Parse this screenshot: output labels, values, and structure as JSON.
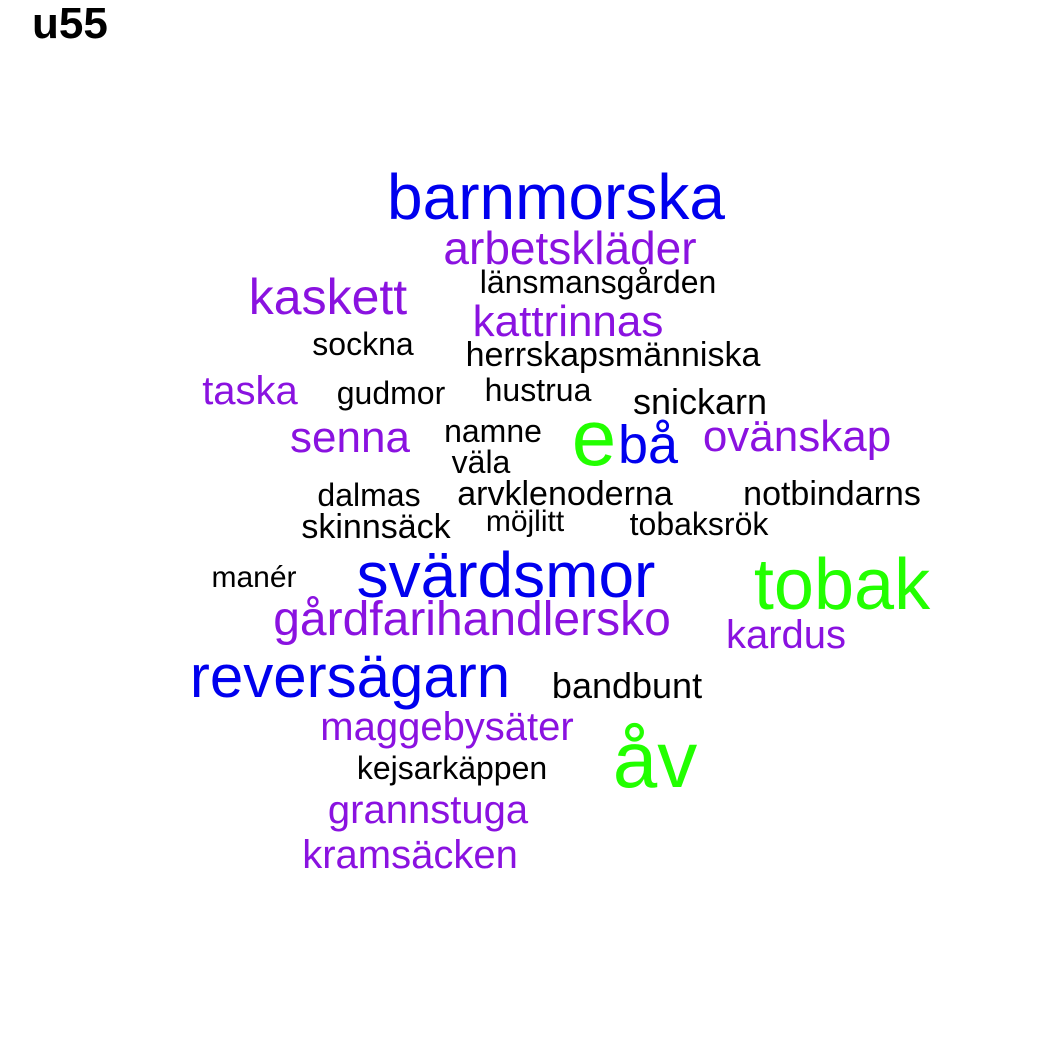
{
  "title": "u55",
  "colors": {
    "large": "#0000ee",
    "top": "#22ff00",
    "mid": "#8a12e0",
    "small": "#000000"
  },
  "words": [
    {
      "text": "barnmorska",
      "color": "large"
    },
    {
      "text": "arbetskläder",
      "color": "mid"
    },
    {
      "text": "länsmansgården",
      "color": "small"
    },
    {
      "text": "kaskett",
      "color": "mid"
    },
    {
      "text": "kattrinnas",
      "color": "mid"
    },
    {
      "text": "sockna",
      "color": "small"
    },
    {
      "text": "herrskapsmänniska",
      "color": "small"
    },
    {
      "text": "taska",
      "color": "mid"
    },
    {
      "text": "gudmor",
      "color": "small"
    },
    {
      "text": "hustrua",
      "color": "small"
    },
    {
      "text": "snickarn",
      "color": "small"
    },
    {
      "text": "e",
      "color": "top"
    },
    {
      "text": "senna",
      "color": "mid"
    },
    {
      "text": "namne",
      "color": "small"
    },
    {
      "text": "bå",
      "color": "large"
    },
    {
      "text": "ovänskap",
      "color": "mid"
    },
    {
      "text": "väla",
      "color": "small"
    },
    {
      "text": "dalmas",
      "color": "small"
    },
    {
      "text": "arvklenoderna",
      "color": "small"
    },
    {
      "text": "notbindarns",
      "color": "small"
    },
    {
      "text": "skinnsäck",
      "color": "small"
    },
    {
      "text": "möjlitt",
      "color": "small"
    },
    {
      "text": "tobaksrök",
      "color": "small"
    },
    {
      "text": "manér",
      "color": "small"
    },
    {
      "text": "svärdsmor",
      "color": "large"
    },
    {
      "text": "tobak",
      "color": "top"
    },
    {
      "text": "gårdfarihandlersko",
      "color": "mid"
    },
    {
      "text": "kardus",
      "color": "mid"
    },
    {
      "text": "reversägarn",
      "color": "large"
    },
    {
      "text": "bandbunt",
      "color": "small"
    },
    {
      "text": "maggebysäter",
      "color": "mid"
    },
    {
      "text": "åv",
      "color": "top"
    },
    {
      "text": "kejsarkäppen",
      "color": "small"
    },
    {
      "text": "grannstuga",
      "color": "mid"
    },
    {
      "text": "kramsäcken",
      "color": "mid"
    }
  ]
}
